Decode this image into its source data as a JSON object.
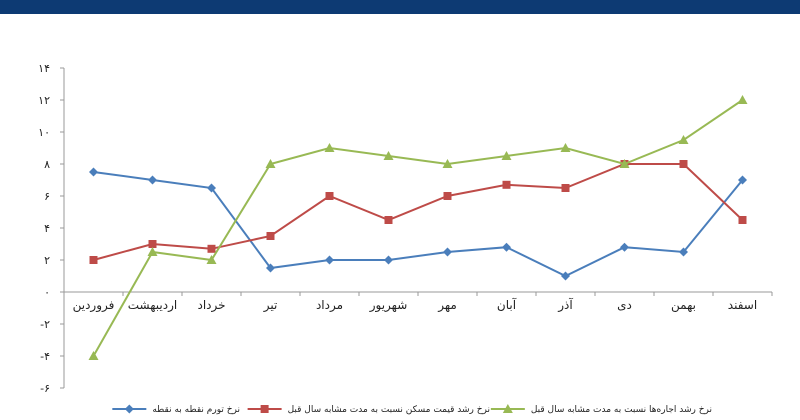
{
  "chart_data": {
    "type": "line",
    "categories": [
      "فروردین",
      "اردیبهشت",
      "خرداد",
      "تیر",
      "مرداد",
      "شهریور",
      "مهر",
      "آبان",
      "آذر",
      "دی",
      "بهمن",
      "اسفند"
    ],
    "series": [
      {
        "name": "نرخ تورم نقطه به نقطه",
        "color": "#4a7ebb",
        "marker": "diamond",
        "values": [
          7.5,
          7.0,
          6.5,
          1.5,
          2.0,
          2.0,
          2.5,
          2.8,
          1.0,
          2.8,
          2.5,
          7.0
        ]
      },
      {
        "name": "نرخ رشد قیمت مسکن نسبت به مدت مشابه سال قبل",
        "color": "#be4b48",
        "marker": "square",
        "values": [
          2.0,
          3.0,
          2.7,
          3.5,
          6.0,
          4.5,
          6.0,
          6.7,
          6.5,
          8.0,
          8.0,
          4.5
        ]
      },
      {
        "name": "نرخ رشد اجاره‌ها نسبت به مدت مشابه سال قبل",
        "color": "#98b954",
        "marker": "triangle",
        "values": [
          -4.0,
          2.5,
          2.0,
          8.0,
          9.0,
          8.5,
          8.0,
          8.5,
          9.0,
          8.0,
          9.5,
          12.0
        ]
      }
    ],
    "ylim": [
      -6,
      14
    ],
    "yticks": [
      -6,
      -4,
      -2,
      0,
      2,
      4,
      6,
      8,
      10,
      12,
      14
    ],
    "ytick_labels": [
      "-۶",
      "-۴",
      "-۲",
      "۰",
      "۲",
      "۴",
      "۶",
      "۸",
      "۱۰",
      "۱۲",
      "۱۴"
    ],
    "grid": false,
    "legend": "bottom"
  }
}
